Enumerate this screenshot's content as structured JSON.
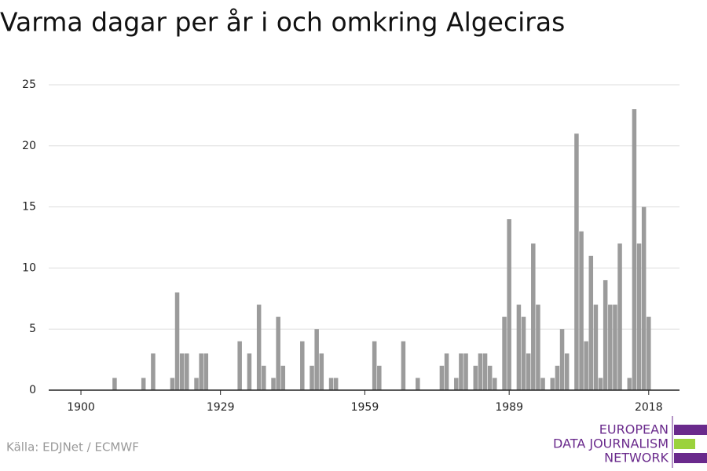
{
  "chart_data": {
    "type": "bar",
    "title": "Varma dagar per år i och omkring Algeciras",
    "source": "Källa: EDJNet / ECMWF",
    "logo": [
      "EUROPEAN",
      "DATA JOURNALISM",
      "NETWORK"
    ],
    "color": "#9b9b9b",
    "x": [
      1900,
      1901,
      1902,
      1903,
      1904,
      1905,
      1906,
      1907,
      1908,
      1909,
      1910,
      1911,
      1912,
      1913,
      1914,
      1915,
      1916,
      1917,
      1918,
      1919,
      1920,
      1921,
      1922,
      1923,
      1924,
      1925,
      1926,
      1927,
      1928,
      1929,
      1930,
      1931,
      1932,
      1933,
      1934,
      1935,
      1936,
      1937,
      1938,
      1939,
      1940,
      1941,
      1942,
      1943,
      1944,
      1945,
      1946,
      1947,
      1948,
      1949,
      1950,
      1951,
      1952,
      1953,
      1954,
      1955,
      1956,
      1957,
      1958,
      1959,
      1960,
      1961,
      1962,
      1963,
      1964,
      1965,
      1966,
      1967,
      1968,
      1969,
      1970,
      1971,
      1972,
      1973,
      1974,
      1975,
      1976,
      1977,
      1978,
      1979,
      1980,
      1981,
      1982,
      1983,
      1984,
      1985,
      1986,
      1987,
      1988,
      1989,
      1990,
      1991,
      1992,
      1993,
      1994,
      1995,
      1996,
      1997,
      1998,
      1999,
      2000,
      2001,
      2002,
      2003,
      2004,
      2005,
      2006,
      2007,
      2008,
      2009,
      2010,
      2011,
      2012,
      2013,
      2014,
      2015,
      2016,
      2017,
      2018
    ],
    "values": [
      0,
      0,
      0,
      0,
      0,
      0,
      0,
      1,
      0,
      0,
      0,
      0,
      0,
      1,
      0,
      3,
      0,
      0,
      0,
      1,
      8,
      3,
      3,
      0,
      1,
      3,
      3,
      0,
      0,
      0,
      0,
      0,
      0,
      4,
      0,
      3,
      0,
      7,
      2,
      0,
      1,
      6,
      2,
      0,
      0,
      0,
      4,
      0,
      2,
      5,
      3,
      0,
      1,
      1,
      0,
      0,
      0,
      0,
      0,
      0,
      0,
      4,
      2,
      0,
      0,
      0,
      0,
      4,
      0,
      0,
      1,
      0,
      0,
      0,
      0,
      2,
      3,
      0,
      1,
      3,
      3,
      0,
      2,
      3,
      3,
      2,
      1,
      0,
      6,
      14,
      0,
      7,
      6,
      3,
      12,
      7,
      1,
      0,
      1,
      2,
      5,
      3,
      0,
      21,
      13,
      4,
      11,
      7,
      1,
      9,
      7,
      7,
      12,
      0,
      1,
      23,
      12,
      15,
      6
    ],
    "xlim": [
      1893.3,
      2024.4
    ],
    "xticks": [
      1900,
      1929,
      1959,
      1989,
      2018
    ],
    "ylim": [
      0,
      25
    ],
    "yticks": [
      0,
      5,
      10,
      15,
      20,
      25
    ],
    "grid": true
  }
}
